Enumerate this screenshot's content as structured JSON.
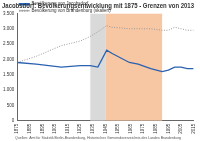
{
  "chart_data": {
    "type": "line",
    "title": "Jacobsdorf: Bevölkerungsentwicklung mit 1875 - Grenzen von 2013",
    "footer": "Quellen: Amt für Statistik Berlin-Brandenburg, Historisches Gemeindeverzeichnis des Landes Brandenburg",
    "x": [
      1875,
      1890,
      1910,
      1925,
      1933,
      1939,
      1946,
      1950,
      1964,
      1971,
      1981,
      1990,
      1995,
      2000,
      2005,
      2010,
      2015
    ],
    "series": [
      {
        "name": "Bevölkerung von Jacobsdorf",
        "color": "#2a62b0",
        "line_style": "solid",
        "values": [
          1900,
          1850,
          1750,
          1800,
          1800,
          1750,
          2300,
          2200,
          1900,
          1850,
          1700,
          1600,
          1650,
          1750,
          1750,
          1700,
          1700
        ]
      },
      {
        "name": "Bevölkerung von Brandenburg (skaliert)",
        "color": "#9a9a9a",
        "line_style": "dotted",
        "values": [
          1900,
          2100,
          2450,
          2600,
          2750,
          2900,
          3100,
          3050,
          3000,
          3000,
          3000,
          2950,
          2950,
          3050,
          3000,
          2950,
          2950
        ]
      }
    ],
    "bands": [
      {
        "from": 1933,
        "to": 1945,
        "color": "#d9d9d9"
      },
      {
        "from": 1945,
        "to": 1990,
        "color": "#f7c6a3"
      }
    ],
    "xlim": [
      1875,
      2015
    ],
    "xticks": [
      1875,
      1885,
      1895,
      1905,
      1915,
      1925,
      1935,
      1945,
      1955,
      1965,
      1975,
      1985,
      1995,
      2005,
      2015
    ],
    "ylim": [
      0,
      3500
    ],
    "yticks": [
      0,
      500,
      {
        "value": 1000,
        "label": "1.000"
      },
      {
        "value": 1500,
        "label": "1.500"
      },
      {
        "value": 2000,
        "label": "2.000"
      },
      {
        "value": 2500,
        "label": "2.500"
      },
      {
        "value": 3000,
        "label": "3.000"
      },
      {
        "value": 3500,
        "label": "3.500"
      }
    ],
    "grid": false,
    "legend": "upper left"
  }
}
